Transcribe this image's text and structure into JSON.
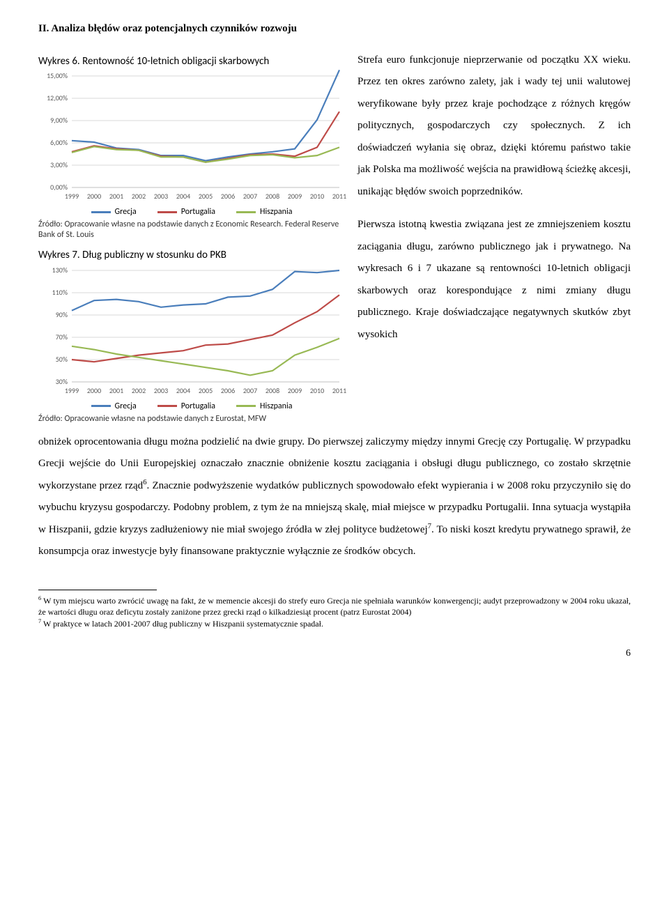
{
  "heading": "II.     Analiza błędów oraz potencjalnych czynników rozwoju",
  "chart6": {
    "title": "Wykres 6. Rentowność 10-letnich obligacji skarbowych",
    "type": "line",
    "years": [
      "1999",
      "2000",
      "2001",
      "2002",
      "2003",
      "2004",
      "2005",
      "2006",
      "2007",
      "2008",
      "2009",
      "2010",
      "2011"
    ],
    "ylabels": [
      "0,00%",
      "3,00%",
      "6,00%",
      "9,00%",
      "12,00%",
      "15,00%"
    ],
    "ylim": [
      0,
      15
    ],
    "series": [
      {
        "name": "Grecja",
        "color": "#4a7ebb",
        "values": [
          6.3,
          6.1,
          5.3,
          5.1,
          4.3,
          4.3,
          3.6,
          4.1,
          4.5,
          4.8,
          5.2,
          9.1,
          15.8
        ]
      },
      {
        "name": "Portugalia",
        "color": "#be4b48",
        "values": [
          4.8,
          5.6,
          5.2,
          5.0,
          4.2,
          4.1,
          3.4,
          3.9,
          4.4,
          4.5,
          4.2,
          5.4,
          10.2
        ]
      },
      {
        "name": "Hiszpania",
        "color": "#98b954",
        "values": [
          4.7,
          5.5,
          5.1,
          5.0,
          4.1,
          4.1,
          3.4,
          3.8,
          4.3,
          4.4,
          4.0,
          4.3,
          5.4
        ]
      }
    ],
    "source": "Źródło: Opracowanie własne na podstawie danych z Economic Research. Federal Reserve Bank of St. Louis",
    "bg": "#ffffff",
    "grid": "#d9d9d9"
  },
  "chart7": {
    "title": "Wykres 7. Dług publiczny w stosunku do PKB",
    "type": "line",
    "years": [
      "1999",
      "2000",
      "2001",
      "2002",
      "2003",
      "2004",
      "2005",
      "2006",
      "2007",
      "2008",
      "2009",
      "2010",
      "2011"
    ],
    "ylabels": [
      "30%",
      "50%",
      "70%",
      "90%",
      "110%",
      "130%"
    ],
    "ylim": [
      30,
      130
    ],
    "series": [
      {
        "name": "Grecja",
        "color": "#4a7ebb",
        "values": [
          94,
          103,
          104,
          102,
          97,
          99,
          100,
          106,
          107,
          113,
          129,
          128,
          130
        ]
      },
      {
        "name": "Portugalia",
        "color": "#be4b48",
        "values": [
          50,
          48,
          51,
          54,
          56,
          58,
          63,
          64,
          68,
          72,
          83,
          93,
          108
        ]
      },
      {
        "name": "Hiszpania",
        "color": "#98b954",
        "values": [
          62,
          59,
          55,
          52,
          49,
          46,
          43,
          40,
          36,
          40,
          54,
          61,
          69
        ]
      }
    ],
    "source": "Źródło: Opracowanie własne na podstawie danych z Eurostat, MFW",
    "bg": "#ffffff",
    "grid": "#d9d9d9"
  },
  "legend": {
    "items": [
      {
        "label": "Grecja",
        "color": "#4a7ebb"
      },
      {
        "label": "Portugalia",
        "color": "#be4b48"
      },
      {
        "label": "Hiszpania",
        "color": "#98b954"
      }
    ]
  },
  "para_right": "Strefa euro funkcjonuje nieprzerwanie od początku XX wieku. Przez ten okres zarówno zalety, jak i wady tej unii walutowej weryfikowane były przez kraje pochodzące z różnych kręgów politycznych, gospodarczych czy społecznych. Z ich doświadczeń wyłania się obraz, dzięki któremu państwo takie jak Polska ma możliwość wejścia na prawidłową ścieżkę akcesji, unikając błędów swoich poprzedników.",
  "para_right2": "Pierwsza istotną kwestia związana jest ze zmniejszeniem kosztu zaciągania długu, zarówno publicznego jak i prywatnego. Na wykresach 6 i 7 ukazane są rentowności 10-letnich obligacji skarbowych oraz korespondujące z nimi zmiany długu publicznego. Kraje doświadczające negatywnych skutków zbyt wysokich",
  "body_cont_html": "obniżek oprocentowania długu można podzielić na dwie grupy. Do pierwszej zaliczymy między innymi Grecję czy Portugalię. W przypadku Grecji wejście do Unii Europejskiej oznaczało znacznie obniżenie kosztu zaciągania i obsługi długu publicznego, co zostało skrzętnie wykorzystane przez rząd<sup>6</sup>. Znacznie podwyższenie wydatków publicznych spowodowało efekt wypierania i w 2008 roku przyczyniło się do wybuchu kryzysu gospodarczy. Podobny problem, z tym że na mniejszą skalę, miał miejsce w przypadku Portugalii. Inna sytuacja wystąpiła w Hiszpanii, gdzie kryzys zadłużeniowy nie miał swojego źródła w złej polityce budżetowej<sup>7</sup>. To niski koszt kredytu prywatnego sprawił, że konsumpcja oraz inwestycje były finansowane praktycznie wyłącznie ze środków obcych.",
  "footnote6_html": "<sup>6</sup> W tym miejscu warto zwrócić uwagę na fakt, że w memencie akcesji do strefy euro Grecja nie spełniała warunków konwergencji; audyt przeprowadzony w 2004 roku ukazał, że wartości długu oraz deficytu zostały zaniżone przez grecki rząd o kilkadziesiąt procent (patrz Eurostat 2004)",
  "footnote7_html": "<sup>7</sup> W praktyce w latach 2001-2007 dług publiczny w Hiszpanii systematycznie spadał.",
  "page_number": "6"
}
